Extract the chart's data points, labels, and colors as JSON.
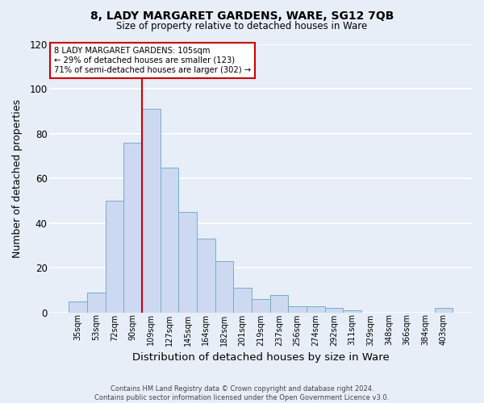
{
  "title_main": "8, LADY MARGARET GARDENS, WARE, SG12 7QB",
  "title_sub": "Size of property relative to detached houses in Ware",
  "xlabel": "Distribution of detached houses by size in Ware",
  "ylabel": "Number of detached properties",
  "categories": [
    "35sqm",
    "53sqm",
    "72sqm",
    "90sqm",
    "109sqm",
    "127sqm",
    "145sqm",
    "164sqm",
    "182sqm",
    "201sqm",
    "219sqm",
    "237sqm",
    "256sqm",
    "274sqm",
    "292sqm",
    "311sqm",
    "329sqm",
    "348sqm",
    "366sqm",
    "384sqm",
    "403sqm"
  ],
  "values": [
    5,
    9,
    50,
    76,
    91,
    65,
    45,
    33,
    23,
    11,
    6,
    8,
    3,
    3,
    2,
    1,
    0,
    0,
    0,
    0,
    2
  ],
  "bar_color": "#ccd9f0",
  "bar_edge_color": "#7aabcc",
  "ylim": [
    0,
    120
  ],
  "yticks": [
    0,
    20,
    40,
    60,
    80,
    100,
    120
  ],
  "property_line_idx": 4,
  "property_label": "8 LADY MARGARET GARDENS: 105sqm",
  "annotation_line1": "← 29% of detached houses are smaller (123)",
  "annotation_line2": "71% of semi-detached houses are larger (302) →",
  "footer1": "Contains HM Land Registry data © Crown copyright and database right 2024.",
  "footer2": "Contains public sector information licensed under the Open Government Licence v3.0.",
  "bg_color": "#e8eef8",
  "grid_color": "#ffffff",
  "annotation_box_color": "#ffffff",
  "annotation_box_edge": "#cc0000",
  "red_line_color": "#cc0000"
}
